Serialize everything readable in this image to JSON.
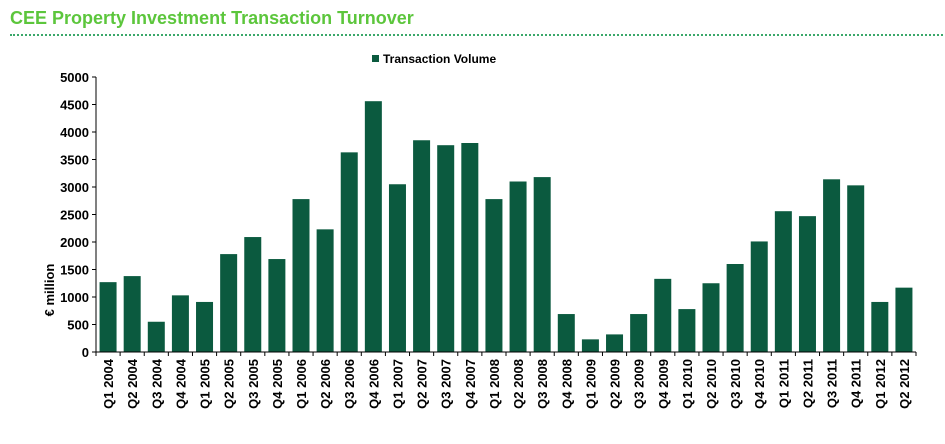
{
  "page": {
    "title": "CEE Property Investment Transaction Turnover"
  },
  "colors": {
    "title": "#5cc63c",
    "rule": "#3aa86a",
    "bar": "#0b5a3f",
    "axis": "#000000"
  },
  "chart_data": {
    "type": "bar",
    "title": "",
    "xlabel": "",
    "ylabel": "€ million",
    "ylim": [
      0,
      5000
    ],
    "yticks": [
      "0",
      "500",
      "1000",
      "1500",
      "2000",
      "2500",
      "3000",
      "3500",
      "4000",
      "4500",
      "5000"
    ],
    "grid": false,
    "legend_position": "top-center",
    "categories": [
      "Q1 2004",
      "Q2 2004",
      "Q3 2004",
      "Q4 2004",
      "Q1 2005",
      "Q2 2005",
      "Q3 2005",
      "Q4 2005",
      "Q1 2006",
      "Q2 2006",
      "Q3 2006",
      "Q4 2006",
      "Q1 2007",
      "Q2 2007",
      "Q3 2007",
      "Q4 2007",
      "Q1 2008",
      "Q2 2008",
      "Q3 2008",
      "Q4 2008",
      "Q1 2009",
      "Q2 2009",
      "Q3 2009",
      "Q4 2009",
      "Q1 2010",
      "Q2 2010",
      "Q3 2010",
      "Q4 2010",
      "Q1 2011",
      "Q2 2011",
      "Q3 2011",
      "Q4 2011",
      "Q1 2012",
      "Q2 2012"
    ],
    "series": [
      {
        "name": "Transaction Volume",
        "color": "#0b5a3f",
        "values": [
          1270,
          1380,
          550,
          1030,
          910,
          1780,
          2090,
          1690,
          2780,
          2230,
          3630,
          4560,
          3050,
          3850,
          3760,
          3800,
          2780,
          3100,
          3180,
          690,
          230,
          320,
          690,
          1330,
          780,
          1250,
          1600,
          2010,
          2560,
          2470,
          3140,
          3030,
          910,
          1170
        ]
      }
    ]
  }
}
